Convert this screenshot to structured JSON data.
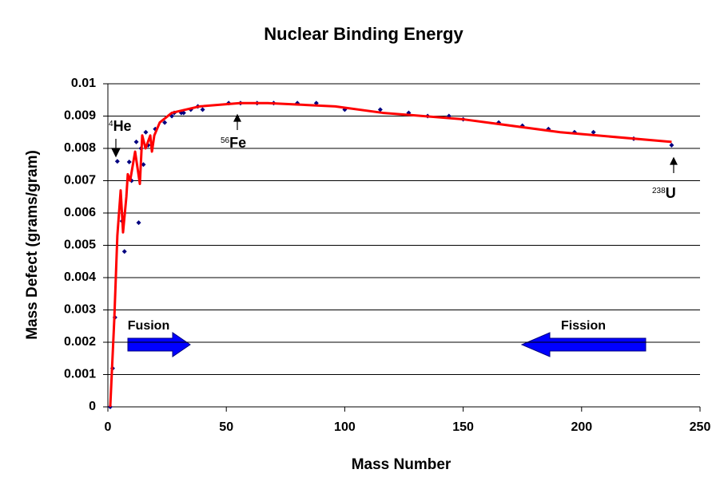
{
  "chart_data": {
    "type": "scatter",
    "title": "Nuclear Binding Energy",
    "x_label": "Mass Number",
    "y_label": "Mass Defect  (grams/gram)",
    "xlim": [
      0,
      250
    ],
    "xticks": [
      0,
      50,
      100,
      150,
      200,
      250
    ],
    "ylim": [
      0,
      0.01
    ],
    "yticks": [
      0,
      0.001,
      0.002,
      0.003,
      0.004,
      0.005,
      0.006,
      0.007,
      0.008,
      0.009,
      0.01
    ],
    "grid": true,
    "series": [
      {
        "mode": "markers",
        "color": "#000080",
        "x": [
          1,
          2,
          3,
          4,
          6,
          7,
          9,
          10,
          12,
          13,
          14,
          15,
          16,
          17,
          20,
          24,
          27,
          28,
          31,
          32,
          35,
          38,
          40,
          51,
          56,
          63,
          70,
          80,
          88,
          100,
          115,
          127,
          135,
          144,
          150,
          165,
          175,
          186,
          197,
          205,
          222,
          238
        ],
        "values": [
          0,
          0.00119,
          0.00277,
          0.0076,
          0.00575,
          0.00481,
          0.00758,
          0.007,
          0.0082,
          0.0057,
          0.008,
          0.0075,
          0.0085,
          0.0081,
          0.0086,
          0.0088,
          0.009,
          0.0091,
          0.0091,
          0.0091,
          0.0092,
          0.0093,
          0.0092,
          0.0094,
          0.0094,
          0.0094,
          0.0094,
          0.0094,
          0.0094,
          0.0092,
          0.0092,
          0.0091,
          0.009,
          0.009,
          0.0089,
          0.0088,
          0.0087,
          0.0086,
          0.0085,
          0.0085,
          0.0083,
          0.0081
        ]
      },
      {
        "mode": "line",
        "color": "#ff0000",
        "x": [
          1,
          2.7,
          4,
          5.4,
          6.4,
          7.8,
          8.4,
          9.4,
          11.5,
          13.5,
          14.5,
          15.9,
          17.9,
          18.6,
          19.6,
          21.9,
          27,
          38.8,
          55.7,
          67.5,
          96,
          116,
          150,
          191,
          238
        ],
        "values": [
          0,
          0.0027,
          0.0053,
          0.0067,
          0.0054,
          0.0065,
          0.0072,
          0.007,
          0.0079,
          0.0069,
          0.0084,
          0.008,
          0.0084,
          0.0079,
          0.0084,
          0.0088,
          0.0091,
          0.0093,
          0.0094,
          0.0094,
          0.0093,
          0.0091,
          0.0089,
          0.0085,
          0.0082
        ]
      }
    ],
    "annotations": [
      {
        "sup": "4",
        "text": "He"
      },
      {
        "sup": "56",
        "text": "Fe"
      },
      {
        "sup": "238",
        "text": "U"
      },
      {
        "text": "Fusion"
      },
      {
        "text": "Fission"
      }
    ]
  }
}
